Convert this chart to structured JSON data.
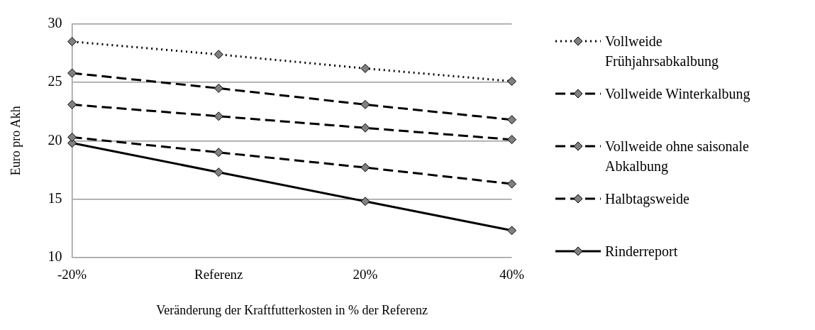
{
  "chart_data": {
    "type": "line",
    "xlabel": "Veränderung der Kraftfutterkosten in % der Referenz",
    "ylabel": "Euro pro Akh",
    "categories": [
      "-20%",
      "Referenz",
      "20%",
      "40%"
    ],
    "series": [
      {
        "name": "Vollweide Frühjahrsabkalbung",
        "color": "#000000",
        "line_style": "dotted",
        "values": [
          28.5,
          27.4,
          26.2,
          25.1
        ]
      },
      {
        "name": "Vollweide Winterkalbung",
        "color": "#000000",
        "line_style": "dashed",
        "values": [
          25.8,
          24.5,
          23.1,
          21.8
        ]
      },
      {
        "name": "Vollweide ohne saisonale Abkalbung",
        "color": "#000000",
        "line_style": "dashed",
        "values": [
          23.1,
          22.1,
          21.1,
          20.1
        ]
      },
      {
        "name": "Halbtagsweide",
        "color": "#000000",
        "line_style": "dashed",
        "values": [
          20.3,
          19.0,
          17.7,
          16.3
        ]
      },
      {
        "name": "Rinderreport",
        "color": "#000000",
        "line_style": "solid",
        "values": [
          19.8,
          17.3,
          14.8,
          12.3
        ]
      }
    ],
    "ylim": [
      10,
      30
    ],
    "yticks": [
      10,
      15,
      20,
      25,
      30
    ],
    "grid": "y",
    "legend": "right",
    "marker": "diamond"
  }
}
